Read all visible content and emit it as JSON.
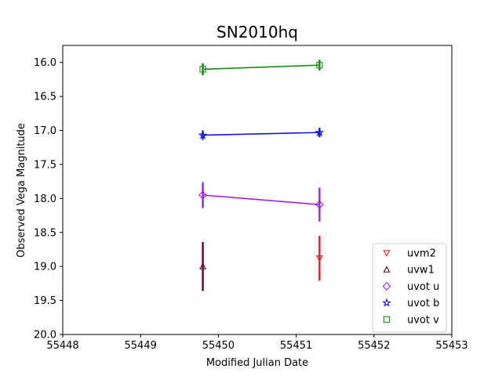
{
  "chart_data": {
    "type": "scatter",
    "title": "SN2010hq",
    "xlabel": "Modified Julian Date",
    "ylabel": "Observed Vega Magnitude",
    "xlim": [
      55448,
      55453
    ],
    "ylim": [
      20.0,
      15.75
    ],
    "y_inverted": true,
    "x_ticks": [
      55448,
      55449,
      55450,
      55451,
      55452,
      55453
    ],
    "y_ticks": [
      16.0,
      16.5,
      17.0,
      17.5,
      18.0,
      18.5,
      19.0,
      19.5,
      20.0
    ],
    "x_tick_labels": [
      "55448",
      "55449",
      "55450",
      "55451",
      "55452",
      "55453"
    ],
    "y_tick_labels": [
      "16.0",
      "16.5",
      "17.0",
      "17.5",
      "18.0",
      "18.5",
      "19.0",
      "19.5",
      "20.0"
    ],
    "grid": false,
    "legend_position": "lower-right",
    "series": [
      {
        "name": "uvm2",
        "color": "#e8191c",
        "marker": "triangle-down",
        "connected": false,
        "points": [
          {
            "x": 55451.3,
            "y": 18.88,
            "err": 0.33
          }
        ]
      },
      {
        "name": "uvw1",
        "color": "#6b0022",
        "marker": "triangle-up",
        "connected": false,
        "points": [
          {
            "x": 55449.8,
            "y": 19.0,
            "err": 0.36
          }
        ]
      },
      {
        "name": "uvot u",
        "color": "#9b22d8",
        "marker": "diamond",
        "connected": true,
        "points": [
          {
            "x": 55449.8,
            "y": 17.95,
            "err": 0.19
          },
          {
            "x": 55451.3,
            "y": 18.09,
            "err": 0.25
          }
        ]
      },
      {
        "name": "uvot b",
        "color": "#1414d8",
        "marker": "star",
        "connected": true,
        "points": [
          {
            "x": 55449.8,
            "y": 17.07,
            "err": 0.07
          },
          {
            "x": 55451.3,
            "y": 17.03,
            "err": 0.07
          }
        ]
      },
      {
        "name": "uvot v",
        "color": "#1a8a1a",
        "marker": "square",
        "connected": true,
        "points": [
          {
            "x": 55449.8,
            "y": 16.1,
            "err": 0.09
          },
          {
            "x": 55451.3,
            "y": 16.04,
            "err": 0.08
          }
        ]
      }
    ]
  }
}
